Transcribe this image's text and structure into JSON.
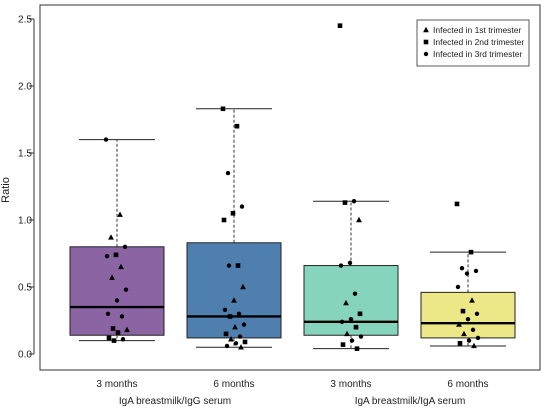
{
  "chart_data": {
    "type": "box",
    "title": "",
    "ylabel": "Ratio",
    "ylim": [
      0,
      2.6
    ],
    "yticks": [
      "0.0",
      "0.5",
      "1.0",
      "1.5",
      "2.0",
      "2.5"
    ],
    "ytick_values": [
      0,
      0.5,
      1.0,
      1.5,
      2.0,
      2.5
    ],
    "grid": false,
    "legend_position": "top-right",
    "legend": [
      {
        "label": "Infected in 1st trimester",
        "marker": "triangle"
      },
      {
        "label": "Infected in 2nd trimester",
        "marker": "square"
      },
      {
        "label": "Infected in 3rd trimester",
        "marker": "circle"
      }
    ],
    "group_labels": [
      "IgA breastmilk/IgG serum",
      "IgA breastmilk/IgA serum"
    ],
    "boxes": [
      {
        "category": "3 months",
        "group": 0,
        "color": "#8a64a3",
        "whisker_low": 0.1,
        "q1": 0.14,
        "median": 0.35,
        "q3": 0.8,
        "whisker_high": 1.6,
        "outliers": [],
        "points": [
          {
            "y": 1.6,
            "m": "circle"
          },
          {
            "y": 1.04,
            "m": "triangle"
          },
          {
            "y": 0.87,
            "m": "triangle"
          },
          {
            "y": 0.8,
            "m": "circle"
          },
          {
            "y": 0.74,
            "m": "square"
          },
          {
            "y": 0.73,
            "m": "circle"
          },
          {
            "y": 0.65,
            "m": "triangle"
          },
          {
            "y": 0.57,
            "m": "triangle"
          },
          {
            "y": 0.48,
            "m": "circle"
          },
          {
            "y": 0.4,
            "m": "circle"
          },
          {
            "y": 0.3,
            "m": "circle"
          },
          {
            "y": 0.28,
            "m": "circle"
          },
          {
            "y": 0.19,
            "m": "square"
          },
          {
            "y": 0.18,
            "m": "triangle"
          },
          {
            "y": 0.16,
            "m": "square"
          },
          {
            "y": 0.12,
            "m": "square"
          },
          {
            "y": 0.11,
            "m": "circle"
          },
          {
            "y": 0.1,
            "m": "square"
          }
        ]
      },
      {
        "category": "6 months",
        "group": 0,
        "color": "#4e7fae",
        "whisker_low": 0.05,
        "q1": 0.12,
        "median": 0.28,
        "q3": 0.83,
        "whisker_high": 1.83,
        "outliers": [],
        "points": [
          {
            "y": 1.83,
            "m": "square"
          },
          {
            "y": 1.7,
            "m": "square"
          },
          {
            "y": 1.35,
            "m": "circle"
          },
          {
            "y": 1.1,
            "m": "circle"
          },
          {
            "y": 1.05,
            "m": "square"
          },
          {
            "y": 1.0,
            "m": "square"
          },
          {
            "y": 0.66,
            "m": "square"
          },
          {
            "y": 0.66,
            "m": "circle"
          },
          {
            "y": 0.5,
            "m": "triangle"
          },
          {
            "y": 0.4,
            "m": "triangle"
          },
          {
            "y": 0.33,
            "m": "circle"
          },
          {
            "y": 0.3,
            "m": "circle"
          },
          {
            "y": 0.28,
            "m": "square"
          },
          {
            "y": 0.22,
            "m": "circle"
          },
          {
            "y": 0.2,
            "m": "triangle"
          },
          {
            "y": 0.15,
            "m": "square"
          },
          {
            "y": 0.13,
            "m": "circle"
          },
          {
            "y": 0.11,
            "m": "triangle"
          },
          {
            "y": 0.09,
            "m": "square"
          },
          {
            "y": 0.08,
            "m": "circle"
          },
          {
            "y": 0.06,
            "m": "circle"
          },
          {
            "y": 0.05,
            "m": "triangle"
          }
        ]
      },
      {
        "category": "3 months",
        "group": 1,
        "color": "#86d4bd",
        "whisker_low": 0.04,
        "q1": 0.14,
        "median": 0.24,
        "q3": 0.66,
        "whisker_high": 1.14,
        "outliers": [
          2.45
        ],
        "points": [
          {
            "y": 2.45,
            "m": "square"
          },
          {
            "y": 1.14,
            "m": "circle"
          },
          {
            "y": 1.13,
            "m": "square"
          },
          {
            "y": 1.0,
            "m": "triangle"
          },
          {
            "y": 0.68,
            "m": "circle"
          },
          {
            "y": 0.66,
            "m": "circle"
          },
          {
            "y": 0.45,
            "m": "circle"
          },
          {
            "y": 0.38,
            "m": "triangle"
          },
          {
            "y": 0.3,
            "m": "square"
          },
          {
            "y": 0.26,
            "m": "circle"
          },
          {
            "y": 0.24,
            "m": "circle"
          },
          {
            "y": 0.2,
            "m": "square"
          },
          {
            "y": 0.15,
            "m": "triangle"
          },
          {
            "y": 0.13,
            "m": "circle"
          },
          {
            "y": 0.1,
            "m": "circle"
          },
          {
            "y": 0.07,
            "m": "square"
          },
          {
            "y": 0.04,
            "m": "square"
          }
        ]
      },
      {
        "category": "6 months",
        "group": 1,
        "color": "#ece887",
        "whisker_low": 0.06,
        "q1": 0.12,
        "median": 0.23,
        "q3": 0.46,
        "whisker_high": 0.76,
        "outliers": [
          1.12
        ],
        "points": [
          {
            "y": 1.12,
            "m": "square"
          },
          {
            "y": 0.76,
            "m": "square"
          },
          {
            "y": 0.64,
            "m": "circle"
          },
          {
            "y": 0.62,
            "m": "circle"
          },
          {
            "y": 0.6,
            "m": "circle"
          },
          {
            "y": 0.5,
            "m": "circle"
          },
          {
            "y": 0.4,
            "m": "triangle"
          },
          {
            "y": 0.32,
            "m": "square"
          },
          {
            "y": 0.3,
            "m": "circle"
          },
          {
            "y": 0.26,
            "m": "circle"
          },
          {
            "y": 0.22,
            "m": "triangle"
          },
          {
            "y": 0.18,
            "m": "circle"
          },
          {
            "y": 0.15,
            "m": "triangle"
          },
          {
            "y": 0.12,
            "m": "circle"
          },
          {
            "y": 0.1,
            "m": "circle"
          },
          {
            "y": 0.08,
            "m": "square"
          },
          {
            "y": 0.06,
            "m": "triangle"
          }
        ]
      }
    ]
  }
}
